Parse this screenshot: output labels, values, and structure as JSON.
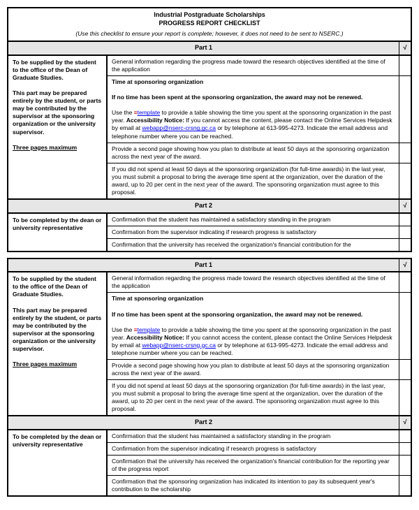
{
  "header": {
    "title1": "Industrial Postgraduate Scholarships",
    "title2": "PROGRESS REPORT CHECKLIST",
    "note": "(Use this checklist to ensure your report is complete; however, it does not need to be sent to NSERC.)"
  },
  "part1Label": "Part 1",
  "part2Label": "Part 2",
  "checkSymbol": "√",
  "templateLink": "template",
  "emailLink": "webapp@nserc-crsng.gc.ca",
  "left1a": "To be supplied by the student to the office of the Dean of Graduate Studies.",
  "left1b": "This part may be prepared entirely by the student, or parts may be contributed by the supervisor at the sponsoring organization or the university supervisor.",
  "left1c": "Three pages maximum",
  "r1": "General information regarding the progress made toward the research objectives identified at the time of the application",
  "r2a": "Time at sponsoring organization",
  "r2b": "If no time has been spent at the sponsoring organization, the award may not be renewed.",
  "r2c1": "Use the ",
  "r2c2": " to provide a table showing the time you spent at the sponsoring organization in the past year. ",
  "r2d": "Accessibility Notice:",
  "r2e1": " If you cannot access the content, please contact the Online Services Helpdesk by email at ",
  "r2e2": " or by telephone at 613-995-4273. Indicate the email address and telephone number where you can be reached.",
  "r3": "Provide a second page showing how you plan to distribute at least 50 days at the sponsoring organization across the next year of the award.",
  "r4": "If you did not spend at least 50 days at the sponsoring organization (for full-time awards) in the last year, you must submit a proposal to bring the average time spent at the organization, over the duration of the award, up to 20 per cent in the next year of the award. The sponsoring organization must agree to this proposal.",
  "left2": "To be completed by the dean or university representative",
  "p2r1": "Confirmation that the student has maintained a satisfactory standing in the program",
  "p2r2": "Confirmation from the supervisor indicating if research progress is satisfactory",
  "p2r3": "Confirmation that the university has received the organization's financial contribution for the",
  "p2r3b": "Confirmation that the university has received the organization's financial contribution for the reporting year of the progress report",
  "p2r4": "Confirmation that the sponsoring organization has indicated its intention to pay its subsequent year's contribution to the scholarship"
}
